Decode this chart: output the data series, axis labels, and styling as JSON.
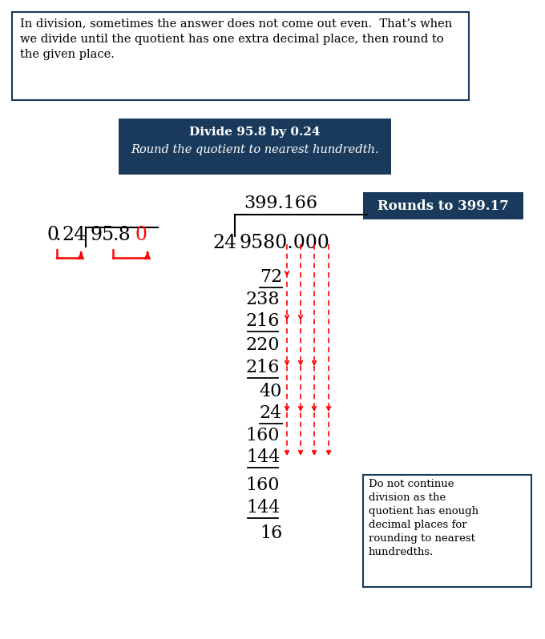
{
  "bg_color": "#ffffff",
  "intro_text": "In division, sometimes the answer does not come out even.  That’s when\nwe divide until the quotient has one extra decimal place, then round to\nthe given place.",
  "header_bg": "#1a3a5c",
  "header_line1": "Divide 95.8 by 0.24",
  "header_line2": "Round the quotient to nearest hundredth.",
  "rounds_bg": "#1a3a5c",
  "rounds_text": "Rounds to 399.17",
  "note_text": "Do not continue\ndivision as the\nquotient has enough\ndecimal places for\nrounding to nearest\nhundredths.",
  "note_box_color": "#1a3a5c",
  "box_edge_color": "#1a3a5c"
}
